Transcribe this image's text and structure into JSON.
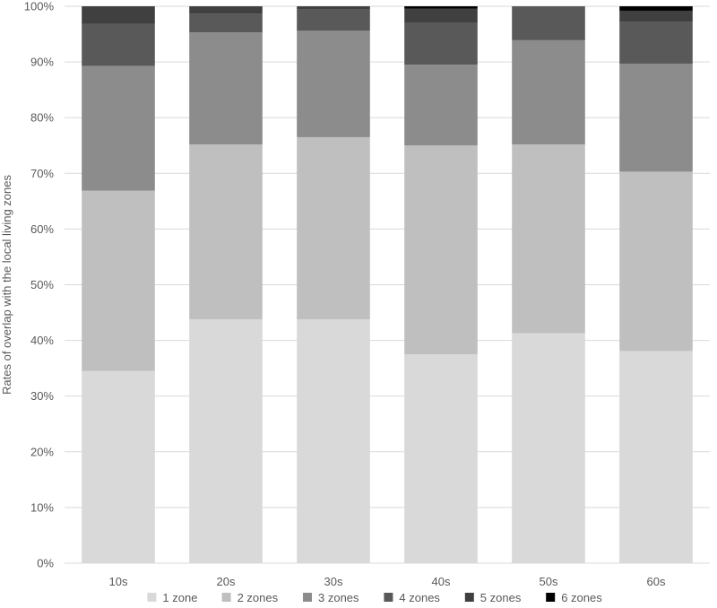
{
  "chart_data": {
    "type": "stacked_bar_100",
    "title": "",
    "xlabel": "",
    "ylabel": "Rates of overlap with the local living zones",
    "categories": [
      "10s",
      "20s",
      "30s",
      "40s",
      "50s",
      "60s"
    ],
    "ylim": [
      0,
      100
    ],
    "ytick_labels": [
      "0%",
      "10%",
      "20%",
      "30%",
      "40%",
      "50%",
      "60%",
      "70%",
      "80%",
      "90%",
      "100%"
    ],
    "grid": true,
    "legend_position": "bottom",
    "series": [
      {
        "name": "1 zone",
        "color": "#d9d9d9",
        "values": [
          34.5,
          43.8,
          43.8,
          37.5,
          41.3,
          38.1
        ]
      },
      {
        "name": "2 zones",
        "color": "#bfbfbf",
        "values": [
          32.4,
          31.4,
          32.7,
          37.5,
          33.9,
          32.2
        ]
      },
      {
        "name": "3 zones",
        "color": "#8c8c8c",
        "values": [
          22.4,
          20.1,
          19.1,
          14.5,
          18.7,
          19.4
        ]
      },
      {
        "name": "4 zones",
        "color": "#595959",
        "values": [
          7.5,
          3.4,
          3.8,
          7.6,
          6.1,
          7.5
        ]
      },
      {
        "name": "5 zones",
        "color": "#404040",
        "values": [
          3.2,
          1.3,
          0.6,
          2.5,
          0.0,
          2.0
        ]
      },
      {
        "name": "6 zones",
        "color": "#000000",
        "values": [
          0.0,
          0.0,
          0.0,
          0.4,
          0.0,
          0.8
        ]
      }
    ]
  }
}
